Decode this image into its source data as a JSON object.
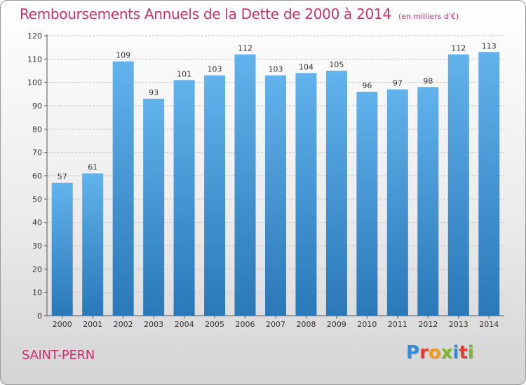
{
  "header": {
    "title": "Remboursements Annuels de la Dette de 2000 à 2014",
    "subtitle": "(en milliers d'€)"
  },
  "footer": {
    "commune": "SAINT-PERN",
    "logo_letters": [
      "P",
      "r",
      "o",
      "x",
      "i",
      "t",
      "i"
    ]
  },
  "colors": {
    "title": "#c8326e",
    "bar_top": "#62b2ec",
    "bar_bottom": "#2a78b8",
    "logo": [
      "#2f8fd8",
      "#e23d2f",
      "#f29a1d",
      "#7ab82a",
      "#2f8fd8",
      "#e23d2f",
      "#7ab82a"
    ]
  },
  "chart_data": {
    "type": "bar",
    "title": "Remboursements Annuels de la Dette de 2000 à 2014",
    "subtitle": "(en milliers d'€)",
    "categories": [
      "2000",
      "2001",
      "2002",
      "2003",
      "2004",
      "2005",
      "2006",
      "2007",
      "2008",
      "2009",
      "2010",
      "2011",
      "2012",
      "2013",
      "2014"
    ],
    "values": [
      57,
      61,
      109,
      93,
      101,
      103,
      112,
      103,
      104,
      105,
      96,
      97,
      98,
      112,
      113
    ],
    "data_labels": [
      "57",
      "61",
      "109",
      "93",
      "101",
      "103",
      "112",
      "103",
      "104",
      "105",
      "96",
      "97",
      "98",
      "112",
      "113"
    ],
    "ylim": [
      0,
      120
    ],
    "yticks": [
      "0",
      "10",
      "20",
      "30",
      "40",
      "50",
      "60",
      "70",
      "80",
      "90",
      "100",
      "110",
      "120"
    ],
    "grid": true,
    "legend": "none"
  }
}
